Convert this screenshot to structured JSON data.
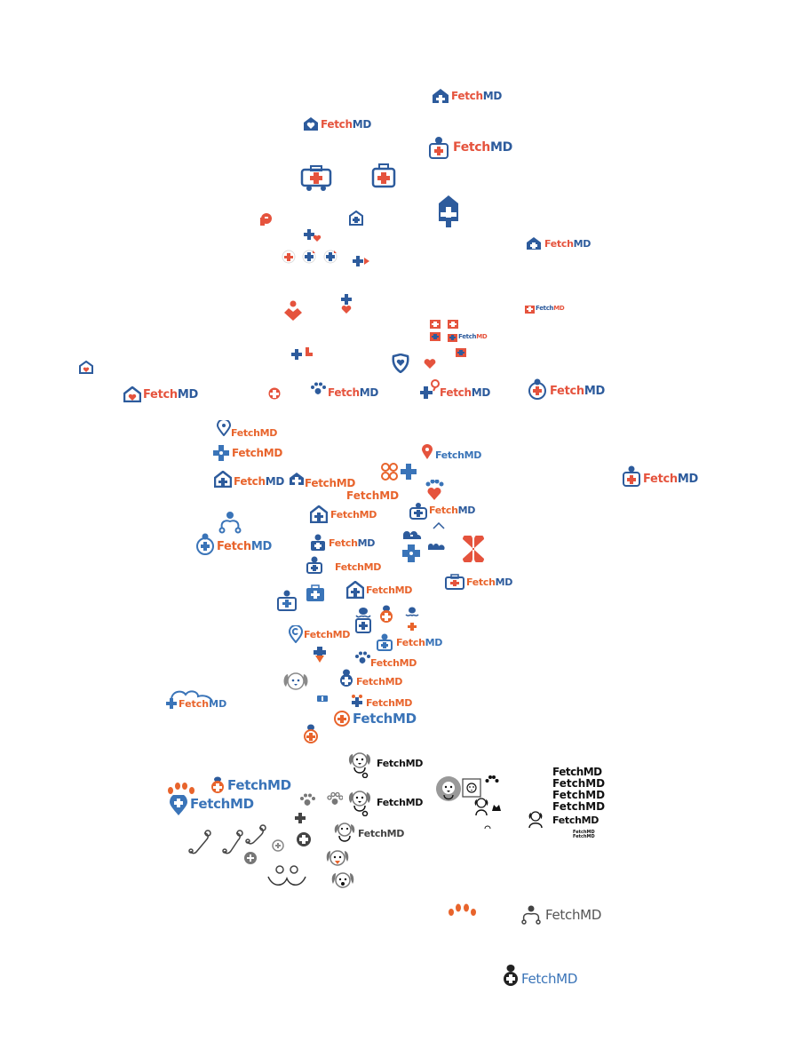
{
  "brand": {
    "fetch": "Fetch",
    "md": "MD",
    "full": "FetchMD"
  },
  "colors": {
    "blue": "#2d5b9c",
    "orange": "#e8642c",
    "red": "#e5533d",
    "light_blue": "#3a74b8",
    "gray": "#6b6b6b",
    "black": "#111111"
  },
  "icons": [
    "house-cross-icon",
    "medical-bag-icon",
    "dog-head-icon",
    "paw-print-icon",
    "stethoscope-icon",
    "location-pin-icon",
    "heart-icon",
    "cross-icon",
    "vet-doctor-icon",
    "clover-icon"
  ]
}
